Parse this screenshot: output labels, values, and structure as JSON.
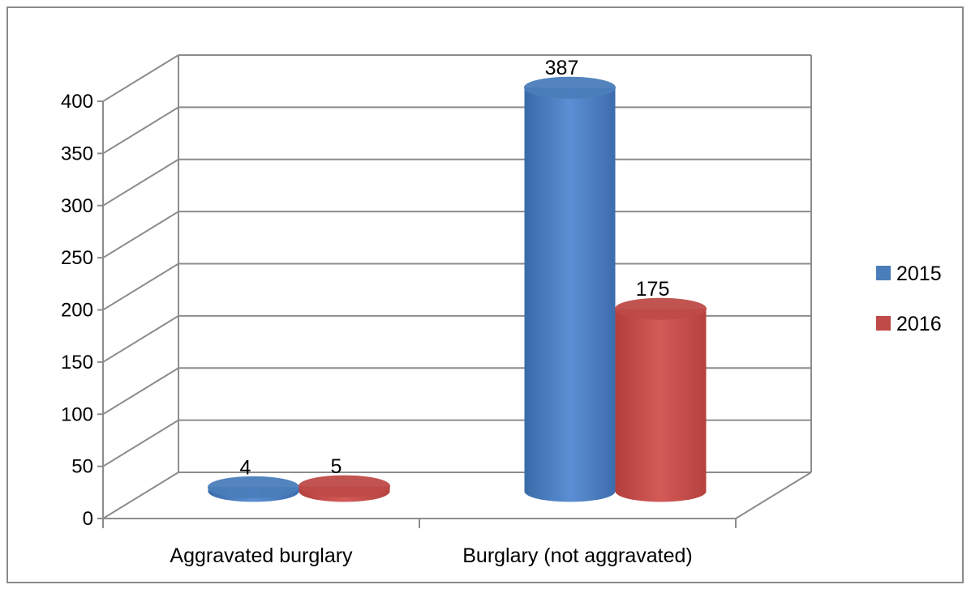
{
  "chart_data": {
    "type": "bar",
    "style": "3d-cylinder",
    "categories": [
      "Aggravated burglary",
      "Burglary (not aggravated)"
    ],
    "series": [
      {
        "name": "2015",
        "values": [
          4,
          387
        ],
        "color": "#4a7ebb"
      },
      {
        "name": "2016",
        "values": [
          5,
          175
        ],
        "color": "#be4b48"
      }
    ],
    "title": "",
    "xlabel": "",
    "ylabel": "",
    "ylim": [
      0,
      400
    ],
    "yticks": [
      0,
      50,
      100,
      150,
      200,
      250,
      300,
      350,
      400
    ],
    "grid": true,
    "legend_position": "right",
    "data_labels": true
  }
}
